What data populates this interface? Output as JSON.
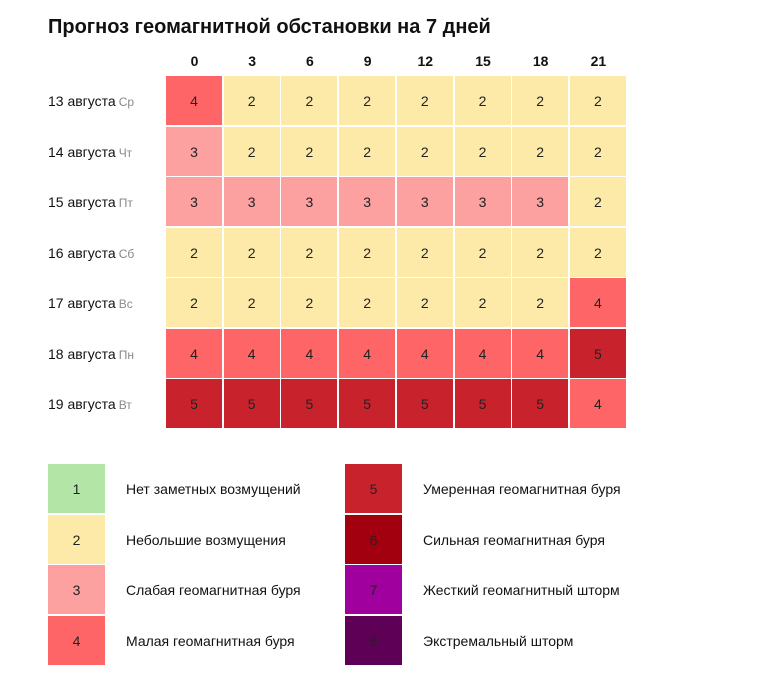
{
  "chart_data": {
    "type": "heatmap",
    "title": "Прогноз геомагнитной обстановки на 7 дней",
    "columns": [
      "0",
      "3",
      "6",
      "9",
      "12",
      "15",
      "18",
      "21"
    ],
    "rows": [
      {
        "date": "13 августа",
        "dow": "Ср",
        "values": [
          4,
          2,
          2,
          2,
          2,
          2,
          2,
          2
        ]
      },
      {
        "date": "14 августа",
        "dow": "Чт",
        "values": [
          3,
          2,
          2,
          2,
          2,
          2,
          2,
          2
        ]
      },
      {
        "date": "15 августа",
        "dow": "Пт",
        "values": [
          3,
          3,
          3,
          3,
          3,
          3,
          3,
          2
        ]
      },
      {
        "date": "16 августа",
        "dow": "Сб",
        "values": [
          2,
          2,
          2,
          2,
          2,
          2,
          2,
          2
        ]
      },
      {
        "date": "17 августа",
        "dow": "Вс",
        "values": [
          2,
          2,
          2,
          2,
          2,
          2,
          2,
          4
        ]
      },
      {
        "date": "18 августа",
        "dow": "Пн",
        "values": [
          4,
          4,
          4,
          4,
          4,
          4,
          4,
          5
        ]
      },
      {
        "date": "19 августа",
        "dow": "Вт",
        "values": [
          5,
          5,
          5,
          5,
          5,
          5,
          5,
          4
        ]
      }
    ],
    "legend": [
      {
        "level": "1",
        "label": "Нет заметных возмущений",
        "color": "#b3e6a6"
      },
      {
        "level": "2",
        "label": "Небольшие возмущения",
        "color": "#fdeaa8"
      },
      {
        "level": "3",
        "label": "Слабая геомагнитная буря",
        "color": "#fda0a0"
      },
      {
        "level": "4",
        "label": "Малая геомагнитная буря",
        "color": "#fe6567"
      },
      {
        "level": "5",
        "label": "Умеренная геомагнитная буря",
        "color": "#c8232d"
      },
      {
        "level": "6",
        "label": "Сильная геомагнитная буря",
        "color": "#a3000f"
      },
      {
        "level": "7",
        "label": "Жесткий геомагнитный шторм",
        "color": "#a0009e"
      },
      {
        "level": "8",
        "label": "Экстремальный шторм",
        "color": "#5e0056"
      }
    ]
  }
}
